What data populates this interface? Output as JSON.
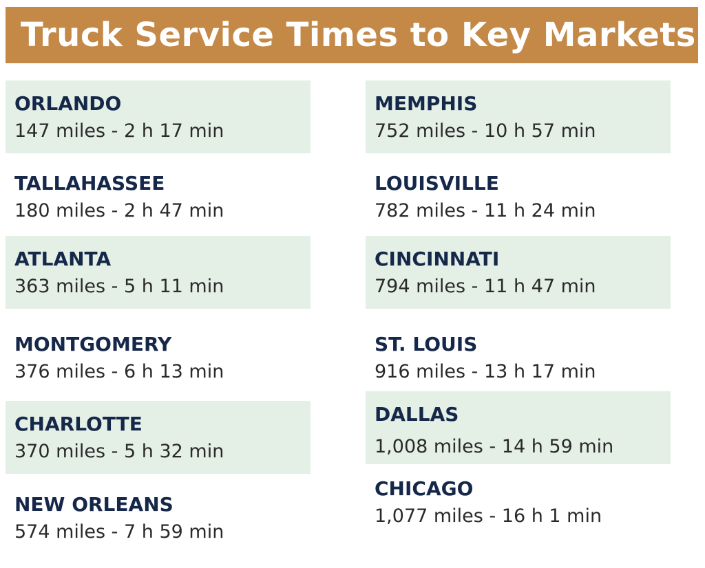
{
  "title": "Truck Service Times to Key Markets",
  "colors": {
    "banner": "#c48847",
    "card_shade": "#e4efe6",
    "city_text": "#16284a",
    "detail_text": "#2a2a2a"
  },
  "left_column": [
    {
      "city": "ORLANDO",
      "detail": "147 miles - 2 h 17 min"
    },
    {
      "city": "TALLAHASSEE",
      "detail": "180 miles - 2 h 47 min"
    },
    {
      "city": "ATLANTA",
      "detail": "363 miles - 5 h 11 min"
    },
    {
      "city": "MONTGOMERY",
      "detail": "376 miles - 6 h 13 min"
    },
    {
      "city": "CHARLOTTE",
      "detail": "370 miles - 5 h 32 min"
    },
    {
      "city": "NEW ORLEANS",
      "detail": "574 miles - 7 h 59 min"
    }
  ],
  "right_column": [
    {
      "city": "MEMPHIS",
      "detail": "752 miles - 10 h 57 min"
    },
    {
      "city": "LOUISVILLE",
      "detail": "782 miles - 11 h 24 min"
    },
    {
      "city": "CINCINNATI",
      "detail": "794 miles - 11 h 47 min"
    },
    {
      "city": "ST. LOUIS",
      "detail": "916 miles - 13 h 17 min"
    },
    {
      "city": "DALLAS",
      "detail": "1,008 miles - 14 h 59 min"
    },
    {
      "city": "CHICAGO",
      "detail": "1,077 miles - 16 h 1 min"
    }
  ]
}
